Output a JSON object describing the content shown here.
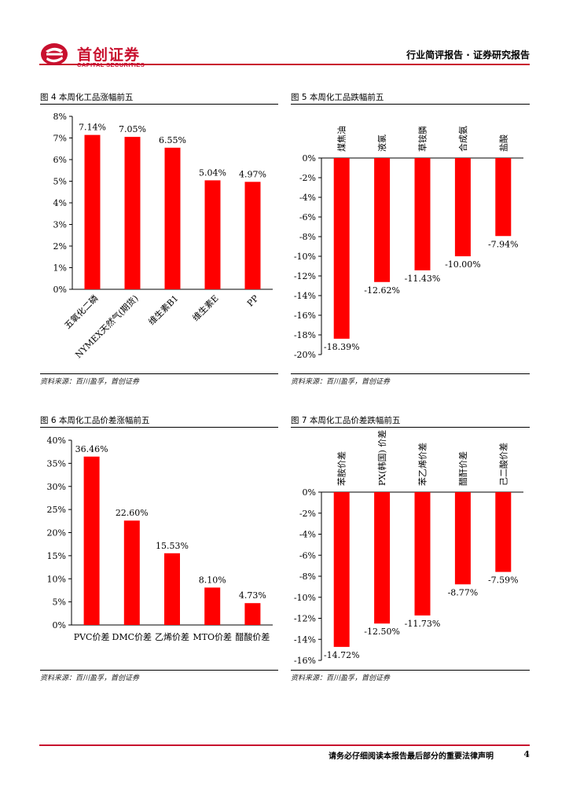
{
  "header": {
    "logo_cn": "首创证券",
    "logo_en": "CAPITAL SECURITIES",
    "report_type": "行业简评报告 · 证券研究报告"
  },
  "colors": {
    "brand": "#c8102e",
    "bar": "#ff0000"
  },
  "charts": [
    {
      "title": "图 4 本周化工品涨幅前五",
      "source": "资料来源：百川盈孚，首创证券",
      "chart_data": {
        "type": "bar",
        "categories": [
          "五氧化二磷",
          "NYMEX天然气(期货)",
          "维生素B1",
          "维生素E",
          "PP"
        ],
        "values": [
          7.14,
          7.05,
          6.55,
          5.04,
          4.97
        ],
        "labels": [
          "7.14%",
          "7.05%",
          "6.55%",
          "5.04%",
          "4.97%"
        ],
        "ylim": [
          0,
          8
        ],
        "yticks": [
          "0%",
          "1%",
          "2%",
          "3%",
          "4%",
          "5%",
          "6%",
          "7%",
          "8%"
        ]
      }
    },
    {
      "title": "图 5 本周化工品跌幅前五",
      "source": "资料来源：百川盈孚，首创证券",
      "chart_data": {
        "type": "bar",
        "categories": [
          "煤焦油",
          "液氯",
          "草铵膦",
          "合成氨",
          "盐酸"
        ],
        "values": [
          -18.39,
          -12.62,
          -11.43,
          -10.0,
          -7.94
        ],
        "labels": [
          "-18.39%",
          "-12.62%",
          "-11.43%",
          "-10.00%",
          "-7.94%"
        ],
        "ylim": [
          -20,
          0
        ],
        "yticks": [
          "0%",
          "-2%",
          "-4%",
          "-6%",
          "-8%",
          "-10%",
          "-12%",
          "-14%",
          "-16%",
          "-18%",
          "-20%"
        ]
      }
    },
    {
      "title": "图 6 本周化工品价差涨幅前五",
      "source": "资料来源：百川盈孚，首创证券",
      "chart_data": {
        "type": "bar",
        "categories": [
          "PVC价差",
          "DMC价差",
          "乙烯价差",
          "MTO价差",
          "醋酸价差"
        ],
        "values": [
          36.46,
          22.6,
          15.53,
          8.1,
          4.73
        ],
        "labels": [
          "36.46%",
          "22.60%",
          "15.53%",
          "8.10%",
          "4.73%"
        ],
        "ylim": [
          0,
          40
        ],
        "yticks": [
          "0%",
          "5%",
          "10%",
          "15%",
          "20%",
          "25%",
          "30%",
          "35%",
          "40%"
        ]
      }
    },
    {
      "title": "图 7 本周化工品价差跌幅前五",
      "source": "资料来源：百川盈孚，首创证券",
      "chart_data": {
        "type": "bar",
        "categories": [
          "苯胺价差",
          "PX(韩国) 价差",
          "苯乙烯价差",
          "醋酐价差",
          "己二酸价差"
        ],
        "values": [
          -14.72,
          -12.5,
          -11.73,
          -8.77,
          -7.59
        ],
        "labels": [
          "-14.72%",
          "-12.50%",
          "-11.73%",
          "-8.77%",
          "-7.59%"
        ],
        "ylim": [
          -16,
          0
        ],
        "yticks": [
          "0%",
          "-2%",
          "-4%",
          "-6%",
          "-8%",
          "-10%",
          "-12%",
          "-14%",
          "-16%"
        ]
      }
    }
  ],
  "footer": {
    "note": "请务必仔细阅读本报告最后部分的重要法律声明",
    "page": "4"
  }
}
